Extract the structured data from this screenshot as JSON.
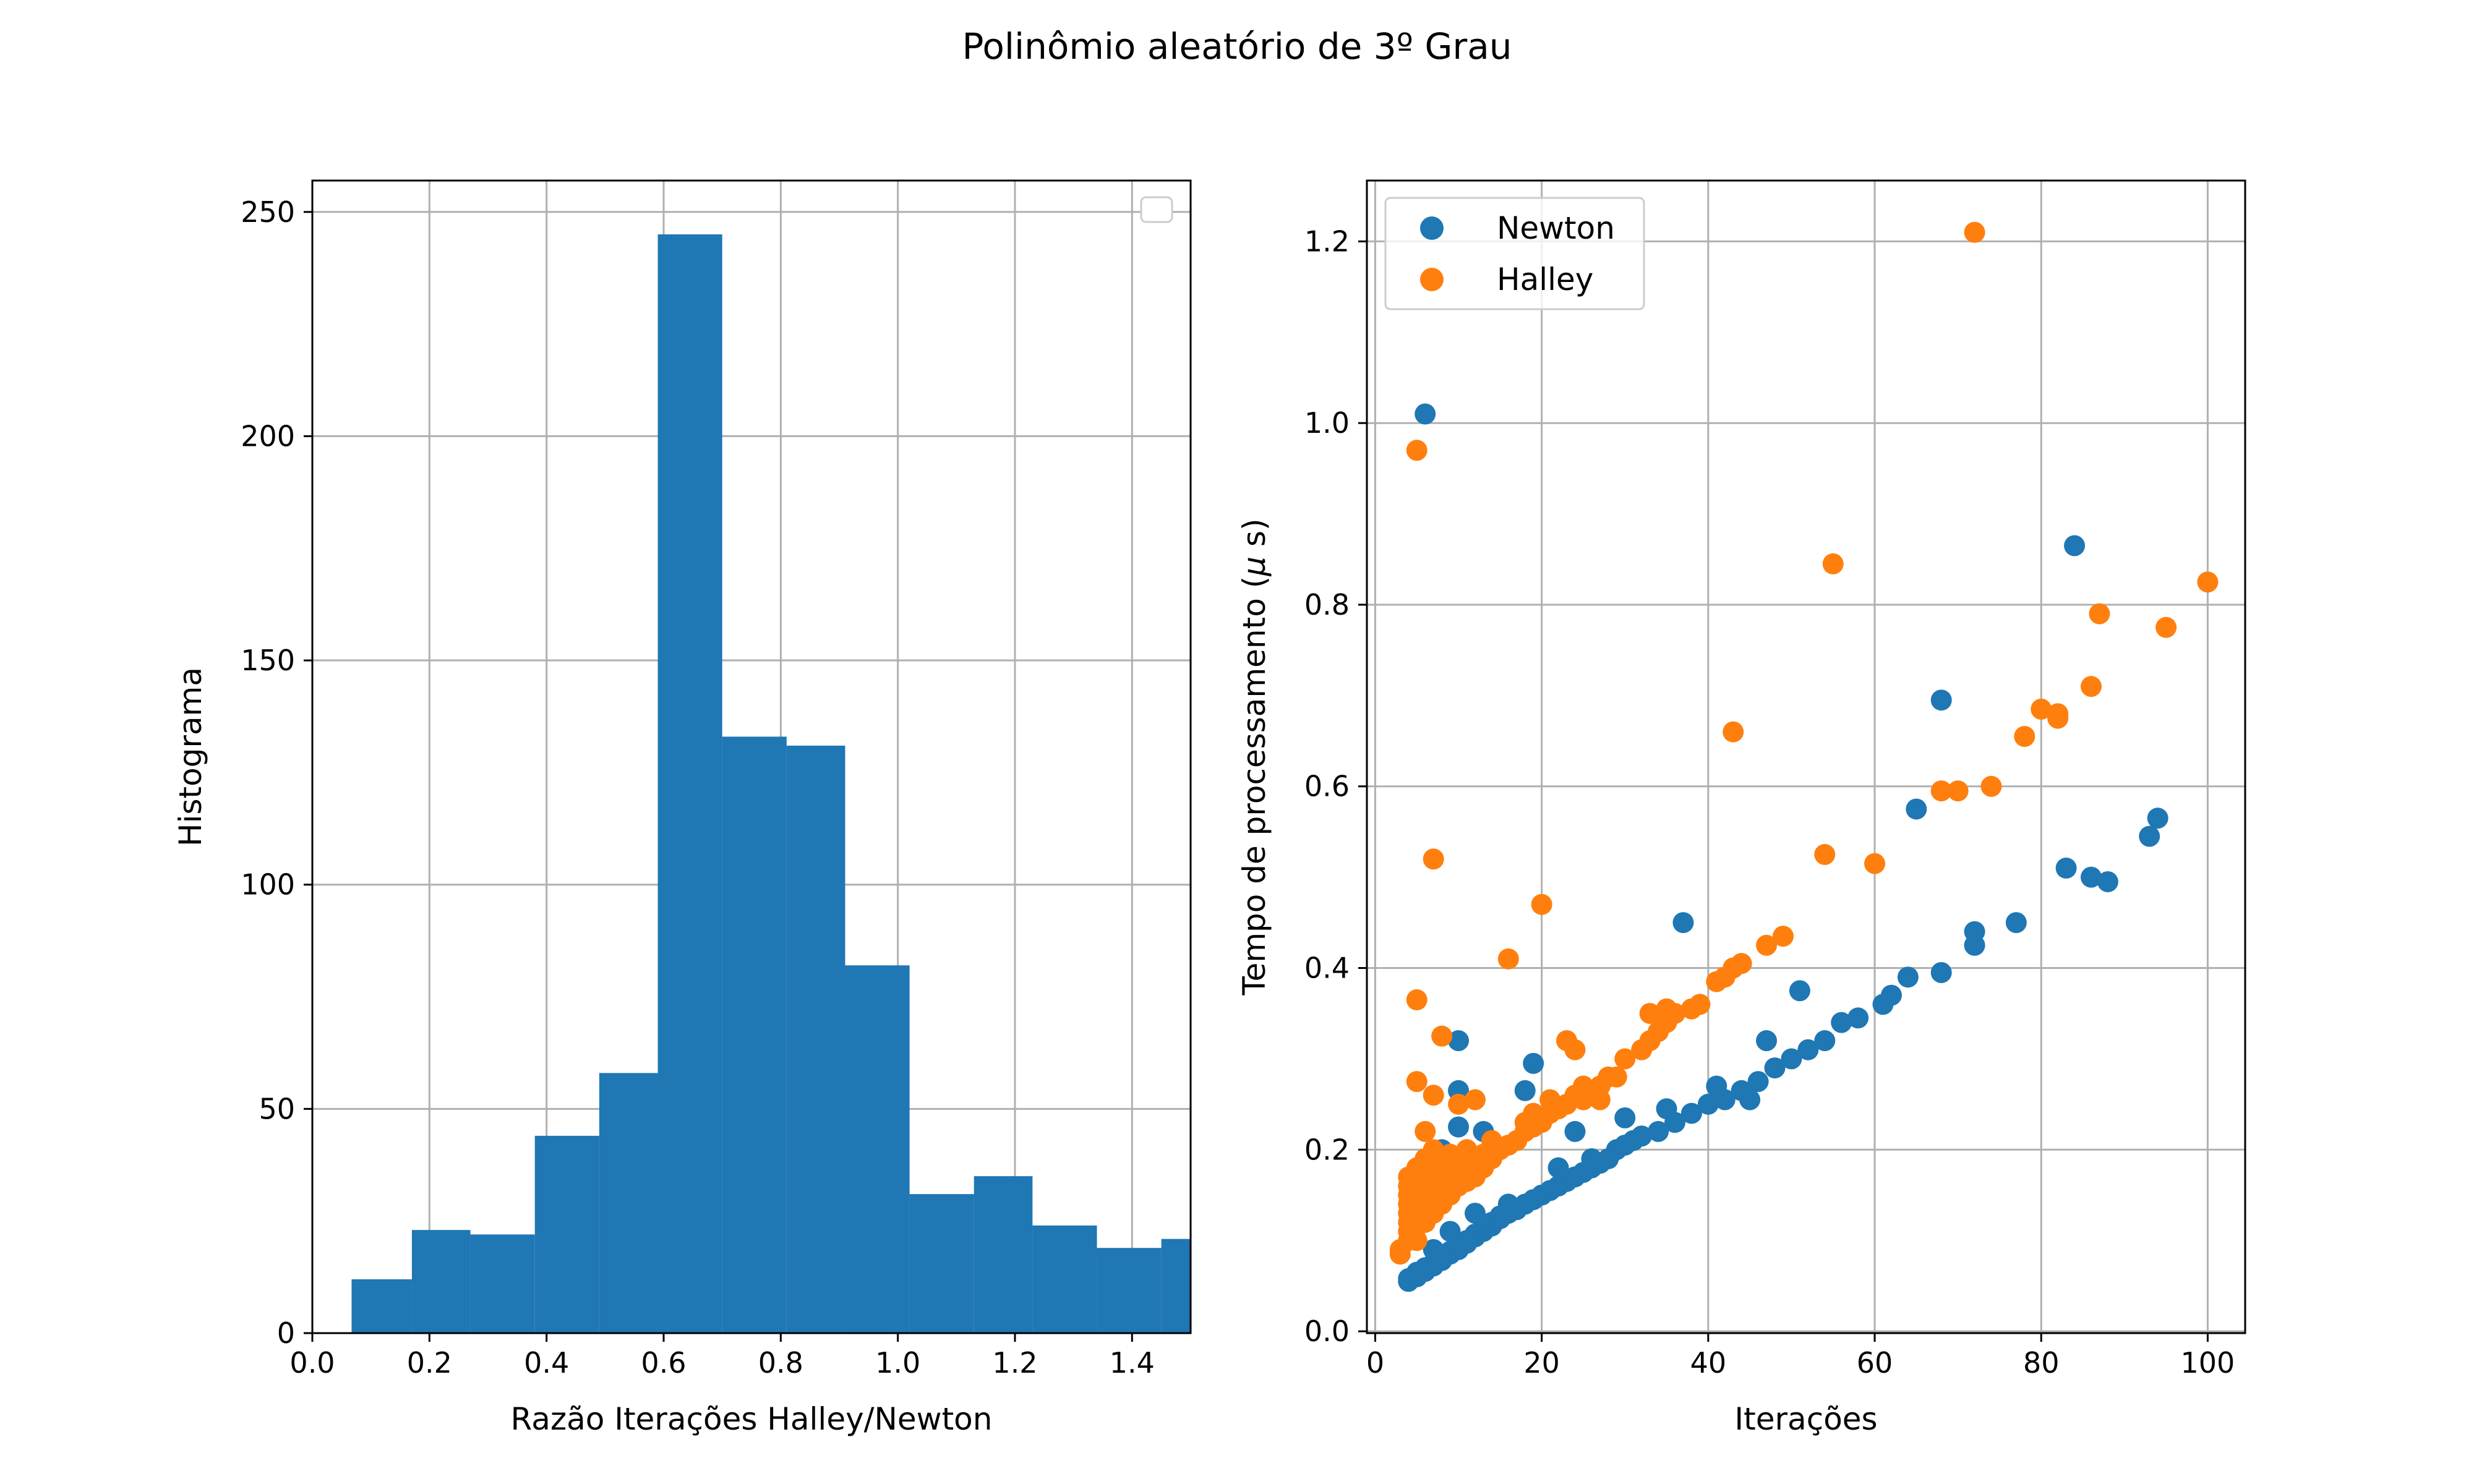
{
  "figure_title": "Polinômio aleatório de 3º Grau",
  "colors": {
    "newton": "#1f77b4",
    "halley": "#ff7f0e",
    "grid": "#b0b0b0"
  },
  "chart_data": [
    {
      "type": "bar",
      "subtype": "histogram",
      "xlabel": "Razão Iterações Halley/Newton",
      "ylabel": "Histograma",
      "xlim": [
        0.0,
        1.5
      ],
      "ylim": [
        0,
        257
      ],
      "xticks": [
        "0.0",
        "0.2",
        "0.4",
        "0.6",
        "0.8",
        "1.0",
        "1.2",
        "1.4"
      ],
      "yticks": [
        "0",
        "50",
        "100",
        "150",
        "200",
        "250"
      ],
      "grid": true,
      "legend": {
        "placement": "top-right",
        "entries": []
      },
      "bins": [
        {
          "x0": 0.067,
          "x1": 0.17,
          "count": 12
        },
        {
          "x0": 0.17,
          "x1": 0.27,
          "count": 23
        },
        {
          "x0": 0.27,
          "x1": 0.38,
          "count": 22
        },
        {
          "x0": 0.38,
          "x1": 0.49,
          "count": 44
        },
        {
          "x0": 0.49,
          "x1": 0.59,
          "count": 58
        },
        {
          "x0": 0.59,
          "x1": 0.7,
          "count": 245
        },
        {
          "x0": 0.7,
          "x1": 0.81,
          "count": 133
        },
        {
          "x0": 0.81,
          "x1": 0.91,
          "count": 131
        },
        {
          "x0": 0.91,
          "x1": 1.02,
          "count": 82
        },
        {
          "x0": 1.02,
          "x1": 1.13,
          "count": 31
        },
        {
          "x0": 1.13,
          "x1": 1.23,
          "count": 35
        },
        {
          "x0": 1.23,
          "x1": 1.34,
          "count": 24
        },
        {
          "x0": 1.34,
          "x1": 1.45,
          "count": 19
        },
        {
          "x0": 1.45,
          "x1": 1.55,
          "count": 21
        }
      ]
    },
    {
      "type": "scatter",
      "xlabel": "Iterações",
      "ylabel": "Tempo de processamento ($\\mu$ s)",
      "ylabel_prefix": "Tempo de processamento (",
      "ylabel_mu": "μ",
      "ylabel_suffix": " s)",
      "xlim": [
        -1,
        104.5
      ],
      "ylim": [
        -0.002,
        1.267
      ],
      "xticks": [
        0,
        20,
        40,
        60,
        80,
        100
      ],
      "yticks": [
        0.0,
        0.2,
        0.4,
        0.6,
        0.8,
        1.0,
        1.2
      ],
      "xtick_labels": [
        "0",
        "20",
        "40",
        "60",
        "80",
        "100"
      ],
      "ytick_labels": [
        "0.0",
        "0.2",
        "0.4",
        "0.6",
        "0.8",
        "1.0",
        "1.2"
      ],
      "grid": true,
      "legend": {
        "placement": "top-left"
      },
      "series": [
        {
          "name": "Newton",
          "color": "#1f77b4",
          "points": [
            [
              4,
              0.055
            ],
            [
              4,
              0.058
            ],
            [
              5,
              0.06
            ],
            [
              5,
              0.062
            ],
            [
              5,
              0.065
            ],
            [
              6,
              0.066
            ],
            [
              6,
              0.07
            ],
            [
              7,
              0.072
            ],
            [
              7,
              0.075
            ],
            [
              8,
              0.078
            ],
            [
              8,
              0.081
            ],
            [
              9,
              0.085
            ],
            [
              9,
              0.088
            ],
            [
              10,
              0.09
            ],
            [
              10,
              0.094
            ],
            [
              11,
              0.097
            ],
            [
              11,
              0.1
            ],
            [
              12,
              0.104
            ],
            [
              12,
              0.107
            ],
            [
              13,
              0.11
            ],
            [
              13,
              0.113
            ],
            [
              14,
              0.116
            ],
            [
              14,
              0.12
            ],
            [
              15,
              0.124
            ],
            [
              15,
              0.127
            ],
            [
              16,
              0.13
            ],
            [
              17,
              0.134
            ],
            [
              18,
              0.14
            ],
            [
              19,
              0.145
            ],
            [
              20,
              0.15
            ],
            [
              21,
              0.155
            ],
            [
              22,
              0.16
            ],
            [
              23,
              0.165
            ],
            [
              24,
              0.17
            ],
            [
              25,
              0.175
            ],
            [
              26,
              0.18
            ],
            [
              27,
              0.185
            ],
            [
              28,
              0.19
            ],
            [
              29,
              0.2
            ],
            [
              30,
              0.205
            ],
            [
              31,
              0.21
            ],
            [
              32,
              0.215
            ],
            [
              34,
              0.22
            ],
            [
              36,
              0.23
            ],
            [
              38,
              0.24
            ],
            [
              40,
              0.25
            ],
            [
              42,
              0.255
            ],
            [
              44,
              0.265
            ],
            [
              46,
              0.275
            ],
            [
              48,
              0.29
            ],
            [
              50,
              0.3
            ],
            [
              52,
              0.31
            ],
            [
              54,
              0.32
            ],
            [
              56,
              0.34
            ],
            [
              58,
              0.345
            ],
            [
              61,
              0.36
            ],
            [
              62,
              0.37
            ],
            [
              64,
              0.39
            ],
            [
              68,
              0.395
            ],
            [
              72,
              0.425
            ],
            [
              72,
              0.44
            ],
            [
              77,
              0.45
            ],
            [
              83,
              0.51
            ],
            [
              86,
              0.5
            ],
            [
              88,
              0.495
            ],
            [
              93,
              0.545
            ],
            [
              94,
              0.565
            ],
            [
              65,
              0.575
            ],
            [
              68,
              0.695
            ],
            [
              84,
              0.865
            ],
            [
              37,
              0.45
            ],
            [
              51,
              0.375
            ],
            [
              10,
              0.32
            ],
            [
              10,
              0.265
            ],
            [
              10,
              0.225
            ],
            [
              13,
              0.22
            ],
            [
              19,
              0.295
            ],
            [
              18,
              0.265
            ],
            [
              8,
              0.2
            ],
            [
              6,
              1.01
            ],
            [
              24,
              0.22
            ],
            [
              30,
              0.235
            ],
            [
              35,
              0.245
            ],
            [
              41,
              0.27
            ],
            [
              47,
              0.32
            ],
            [
              45,
              0.255
            ],
            [
              22,
              0.18
            ],
            [
              26,
              0.19
            ],
            [
              16,
              0.14
            ],
            [
              12,
              0.13
            ],
            [
              9,
              0.11
            ],
            [
              7,
              0.09
            ]
          ]
        },
        {
          "name": "Halley",
          "color": "#ff7f0e",
          "points": [
            [
              3,
              0.085
            ],
            [
              3,
              0.09
            ],
            [
              4,
              0.1
            ],
            [
              4,
              0.11
            ],
            [
              4,
              0.12
            ],
            [
              4,
              0.13
            ],
            [
              4,
              0.14
            ],
            [
              4,
              0.15
            ],
            [
              4,
              0.16
            ],
            [
              4,
              0.17
            ],
            [
              5,
              0.1
            ],
            [
              5,
              0.115
            ],
            [
              5,
              0.13
            ],
            [
              5,
              0.145
            ],
            [
              5,
              0.16
            ],
            [
              5,
              0.18
            ],
            [
              6,
              0.12
            ],
            [
              6,
              0.14
            ],
            [
              6,
              0.155
            ],
            [
              6,
              0.17
            ],
            [
              6,
              0.19
            ],
            [
              7,
              0.13
            ],
            [
              7,
              0.15
            ],
            [
              7,
              0.165
            ],
            [
              7,
              0.18
            ],
            [
              7,
              0.2
            ],
            [
              8,
              0.14
            ],
            [
              8,
              0.16
            ],
            [
              8,
              0.18
            ],
            [
              8,
              0.19
            ],
            [
              9,
              0.15
            ],
            [
              9,
              0.17
            ],
            [
              9,
              0.185
            ],
            [
              10,
              0.16
            ],
            [
              10,
              0.175
            ],
            [
              10,
              0.19
            ],
            [
              11,
              0.165
            ],
            [
              11,
              0.18
            ],
            [
              12,
              0.17
            ],
            [
              12,
              0.19
            ],
            [
              13,
              0.18
            ],
            [
              14,
              0.19
            ],
            [
              15,
              0.2
            ],
            [
              16,
              0.205
            ],
            [
              17,
              0.21
            ],
            [
              18,
              0.22
            ],
            [
              19,
              0.225
            ],
            [
              20,
              0.23
            ],
            [
              21,
              0.24
            ],
            [
              22,
              0.245
            ],
            [
              23,
              0.25
            ],
            [
              24,
              0.26
            ],
            [
              25,
              0.255
            ],
            [
              26,
              0.265
            ],
            [
              27,
              0.27
            ],
            [
              28,
              0.28
            ],
            [
              29,
              0.28
            ],
            [
              30,
              0.3
            ],
            [
              32,
              0.31
            ],
            [
              33,
              0.32
            ],
            [
              34,
              0.33
            ],
            [
              35,
              0.34
            ],
            [
              36,
              0.35
            ],
            [
              38,
              0.355
            ],
            [
              39,
              0.36
            ],
            [
              41,
              0.385
            ],
            [
              42,
              0.39
            ],
            [
              43,
              0.4
            ],
            [
              44,
              0.405
            ],
            [
              47,
              0.425
            ],
            [
              49,
              0.435
            ],
            [
              5,
              0.97
            ],
            [
              5,
              0.365
            ],
            [
              7,
              0.52
            ],
            [
              16,
              0.41
            ],
            [
              20,
              0.47
            ],
            [
              23,
              0.32
            ],
            [
              24,
              0.31
            ],
            [
              5,
              0.275
            ],
            [
              8,
              0.325
            ],
            [
              7,
              0.26
            ],
            [
              6,
              0.22
            ],
            [
              12,
              0.255
            ],
            [
              10,
              0.25
            ],
            [
              18,
              0.23
            ],
            [
              33,
              0.35
            ],
            [
              35,
              0.355
            ],
            [
              43,
              0.66
            ],
            [
              54,
              0.525
            ],
            [
              55,
              0.845
            ],
            [
              60,
              0.515
            ],
            [
              68,
              0.595
            ],
            [
              70,
              0.595
            ],
            [
              74,
              0.6
            ],
            [
              78,
              0.655
            ],
            [
              80,
              0.685
            ],
            [
              82,
              0.68
            ],
            [
              82,
              0.675
            ],
            [
              86,
              0.71
            ],
            [
              87,
              0.79
            ],
            [
              95,
              0.775
            ],
            [
              100,
              0.825
            ],
            [
              72,
              1.21
            ],
            [
              11,
              0.2
            ],
            [
              13,
              0.195
            ],
            [
              9,
              0.195
            ],
            [
              14,
              0.21
            ],
            [
              19,
              0.24
            ],
            [
              21,
              0.255
            ],
            [
              25,
              0.27
            ],
            [
              27,
              0.255
            ]
          ]
        }
      ]
    }
  ]
}
